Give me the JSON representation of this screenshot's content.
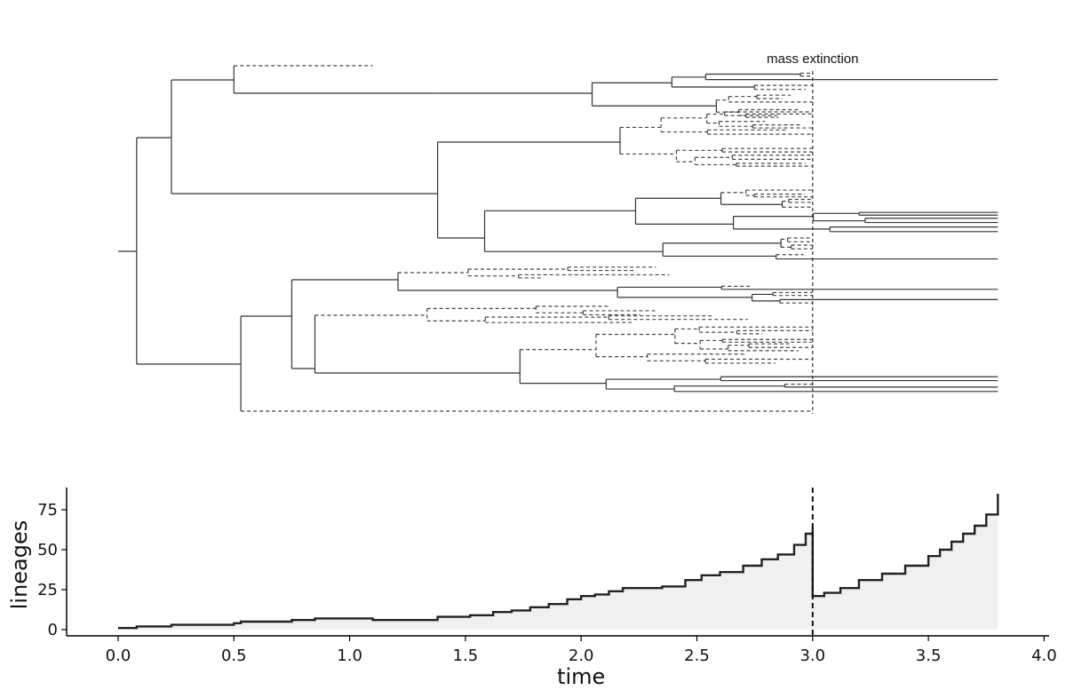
{
  "figure": {
    "annotation": "mass extinction"
  },
  "chart_data": [
    {
      "type": "tree",
      "description": "Reconstructed phylogeny; solid = surviving lineages, dashed = extinct lineages",
      "event_time": 3.0,
      "event_label": "mass extinction",
      "present_time": 3.8,
      "root_time": 0.0,
      "backbone": [
        {
          "from": 0.0,
          "to": 0.08
        },
        {
          "from": 0.08,
          "to": 0.23
        },
        {
          "from": 0.08,
          "to": 0.53
        },
        {
          "from": 0.23,
          "to": 0.5
        },
        {
          "from": 0.23,
          "to": 1.38
        },
        {
          "from": 0.5,
          "to": 1.1,
          "extinct": true
        },
        {
          "from": 0.5,
          "to": 1.38
        },
        {
          "from": 0.53,
          "to": 0.75
        },
        {
          "from": 0.53,
          "to": 3.0,
          "extinct": true
        },
        {
          "from": 0.75,
          "to": 0.85
        },
        {
          "from": 0.75,
          "to": 1.66
        }
      ],
      "colors": {
        "line": "#333333",
        "dashed": "#444444"
      }
    },
    {
      "type": "area",
      "title": "",
      "xlabel": "time",
      "ylabel": "lineages",
      "xlim": [
        -0.22,
        4.04
      ],
      "ylim": [
        -1,
        90
      ],
      "xticks": [
        0.0,
        0.5,
        1.0,
        1.5,
        2.0,
        2.5,
        3.0,
        3.5,
        4.0
      ],
      "xtick_labels": [
        "0.0",
        "0.5",
        "1.0",
        "1.5",
        "2.0",
        "2.5",
        "3.0",
        "3.5",
        "4.0"
      ],
      "yticks": [
        0,
        25,
        50,
        75
      ],
      "ytick_labels": [
        "0",
        "25",
        "50",
        "75"
      ],
      "event_line_x": 3.0,
      "grid": false,
      "colors": {
        "line": "#222222",
        "fill": "#f0f0f0",
        "axis": "#000000"
      },
      "series": [
        {
          "x": [
            0.0,
            0.08,
            0.23,
            0.5,
            0.53,
            0.75,
            0.85,
            1.1,
            1.38,
            1.52,
            1.62,
            1.7,
            1.78,
            1.86,
            1.94,
            2.0,
            2.06,
            2.12,
            2.18,
            2.25,
            2.35,
            2.45,
            2.52,
            2.6,
            2.7,
            2.78,
            2.85,
            2.92,
            2.97,
            3.0,
            3.0,
            3.05,
            3.12,
            3.2,
            3.3,
            3.4,
            3.5,
            3.55,
            3.6,
            3.65,
            3.7,
            3.75,
            3.8
          ],
          "y": [
            1,
            2,
            3,
            4,
            5,
            6,
            7,
            6,
            8,
            9,
            11,
            12,
            14,
            16,
            19,
            21,
            22,
            24,
            26,
            26,
            27,
            31,
            34,
            36,
            40,
            44,
            47,
            53,
            60,
            64,
            21,
            23,
            26,
            31,
            35,
            40,
            46,
            50,
            55,
            60,
            65,
            72,
            85
          ]
        }
      ]
    }
  ]
}
